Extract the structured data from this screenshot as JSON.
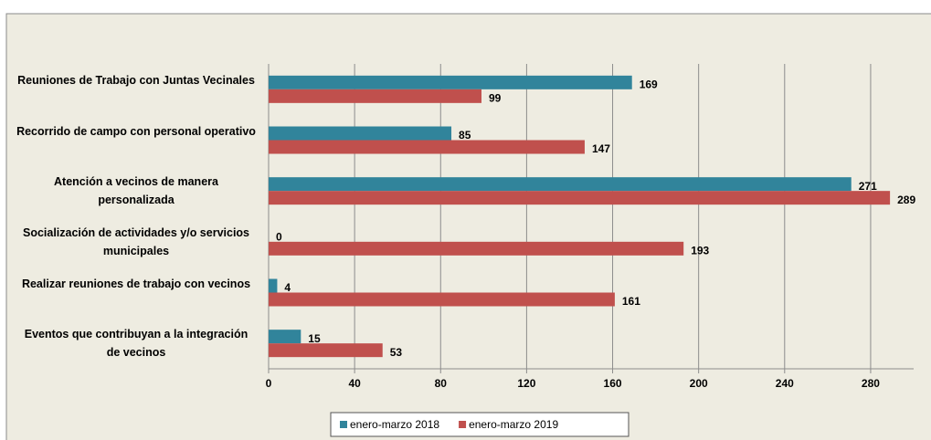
{
  "chart_data": {
    "type": "bar",
    "orientation": "horizontal",
    "categories": [
      "Reuniones de Trabajo con Juntas Vecinales",
      "Recorrido de campo con personal operativo",
      "Atención a vecinos de manera personalizada",
      "Socialización de actividades y/o servicios municipales",
      "Realizar reuniones de trabajo con vecinos",
      "Eventos que contribuyan a la integración de vecinos"
    ],
    "series": [
      {
        "name": "enero-marzo 2018",
        "color": "#31849b",
        "values": [
          169,
          85,
          271,
          0,
          4,
          15
        ]
      },
      {
        "name": "enero-marzo 2019",
        "color": "#c0504d",
        "values": [
          99,
          147,
          289,
          193,
          161,
          53
        ]
      }
    ],
    "xlim": [
      0,
      300
    ],
    "xticks": [
      0,
      40,
      80,
      120,
      160,
      200,
      240,
      280
    ],
    "grid": true,
    "legend": "bottom"
  }
}
